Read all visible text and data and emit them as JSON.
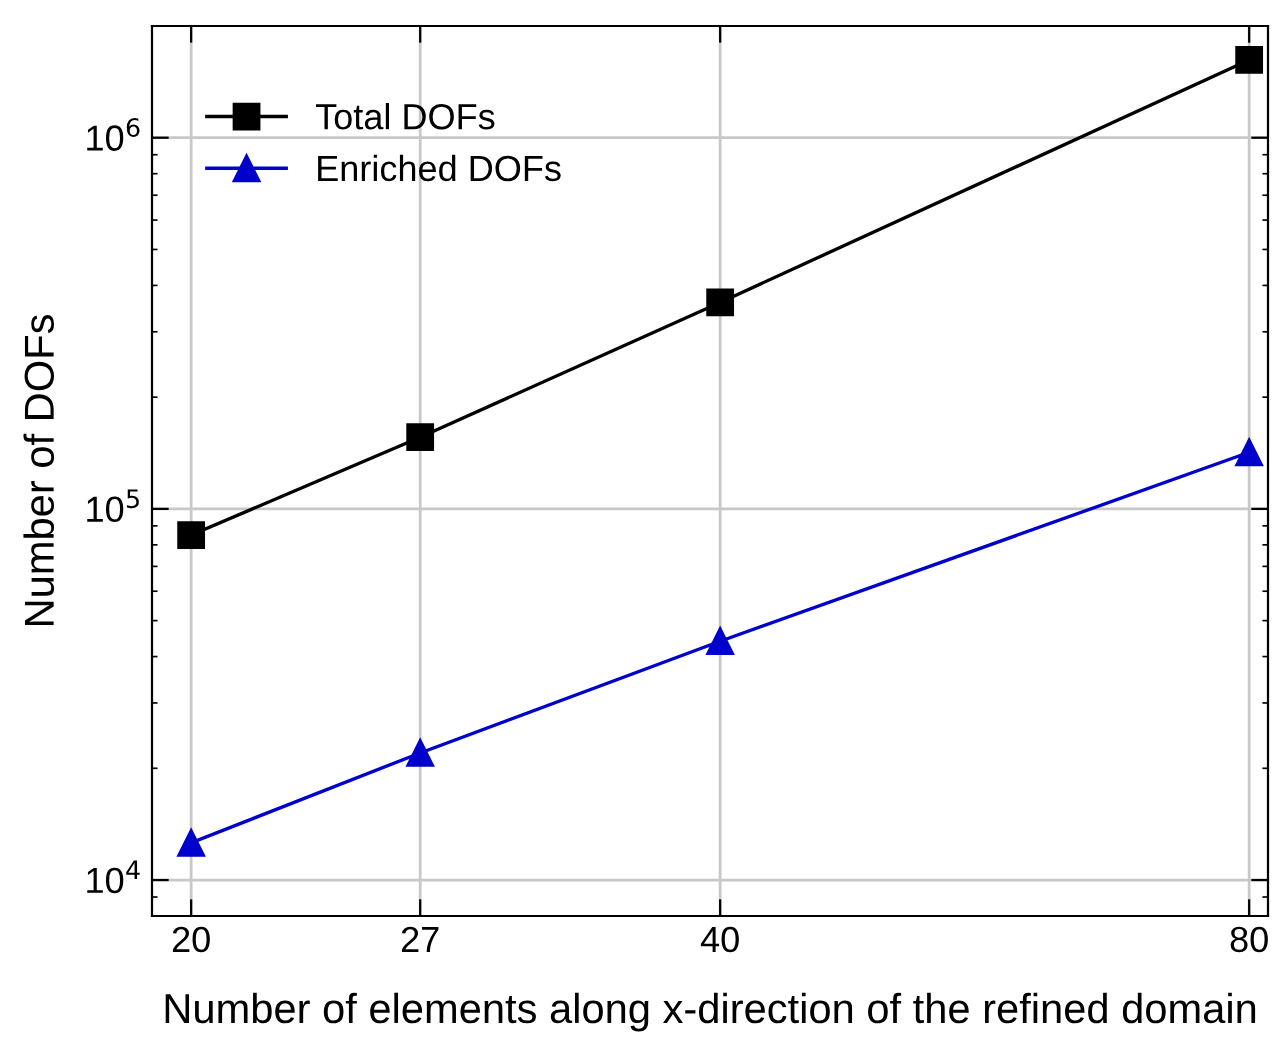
{
  "chart_data": {
    "type": "line",
    "xlabel": "Number of elements along x-direction of the refined domain",
    "ylabel": "Number of DOFs",
    "x": [
      20,
      27,
      40,
      80
    ],
    "series": [
      {
        "name": "Total DOFs",
        "color": "#000000",
        "marker": "square",
        "values": [
          85000,
          156000,
          360000,
          1620000
        ]
      },
      {
        "name": "Enriched DOFs",
        "color": "#0000cc",
        "marker": "triangle",
        "values": [
          12600,
          22000,
          44000,
          142000
        ]
      }
    ],
    "log": "xy",
    "xlim": [
      19,
      82
    ],
    "ylim": [
      8000,
      2000000
    ],
    "xticks": [
      20,
      27,
      40,
      80
    ],
    "yticks": [
      {
        "value": 10000,
        "label": "10$^{4}$"
      },
      {
        "value": 100000,
        "label": "10$^{5}$"
      },
      {
        "value": 1000000,
        "label": "10$^{6}$"
      }
    ],
    "grid": true,
    "legend": "top left",
    "line_style": "solid"
  }
}
